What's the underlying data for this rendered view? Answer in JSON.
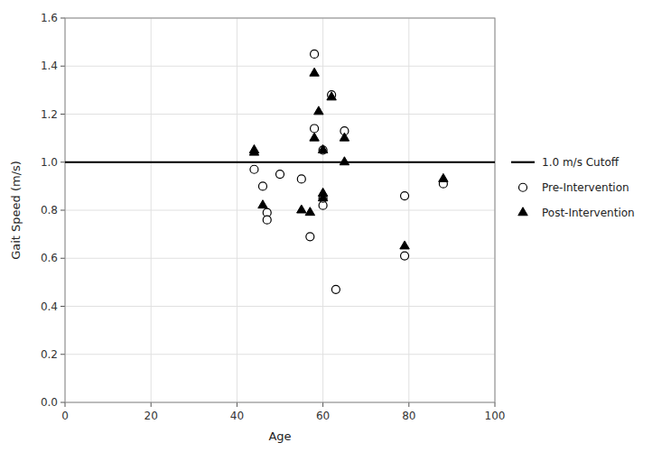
{
  "chart_data": {
    "type": "scatter",
    "x_label": "Age",
    "y_label": "Gait Speed (m/s)",
    "xlim": [
      0,
      100
    ],
    "ylim": [
      0,
      1.6
    ],
    "xticks": [
      0,
      20,
      40,
      60,
      80,
      100
    ],
    "yticks": [
      {
        "value": 0,
        "label": "0.0"
      },
      0.2,
      0.4,
      0.6,
      0.8,
      {
        "value": 1,
        "label": "1.0"
      },
      1.2,
      1.4,
      1.6
    ],
    "grid": true,
    "legend": "right",
    "annotations": [
      {
        "y": 1.0,
        "text": "1.0 m/s Cutoff"
      }
    ],
    "series": [
      {
        "name": "Pre-Intervention",
        "color": "#000000",
        "marker": "open-circle",
        "x": [
          44,
          46,
          47,
          47,
          50,
          55,
          57,
          58,
          58,
          60,
          60,
          60,
          62,
          63,
          65,
          79,
          79,
          88
        ],
        "values": [
          0.97,
          0.9,
          0.79,
          0.76,
          0.95,
          0.93,
          0.69,
          1.14,
          1.45,
          1.05,
          0.82,
          0.85,
          1.28,
          0.47,
          1.13,
          0.86,
          0.61,
          0.91
        ]
      },
      {
        "name": "Post-Intervention",
        "color": "#000000",
        "marker": "triangle",
        "x": [
          44,
          44,
          46,
          55,
          57,
          58,
          58,
          59,
          60,
          60,
          60,
          62,
          65,
          65,
          79,
          88
        ],
        "values": [
          1.04,
          1.05,
          0.82,
          0.8,
          0.79,
          1.1,
          1.37,
          1.21,
          1.05,
          0.87,
          0.85,
          1.27,
          1.1,
          1.0,
          0.65,
          0.93
        ]
      }
    ]
  }
}
